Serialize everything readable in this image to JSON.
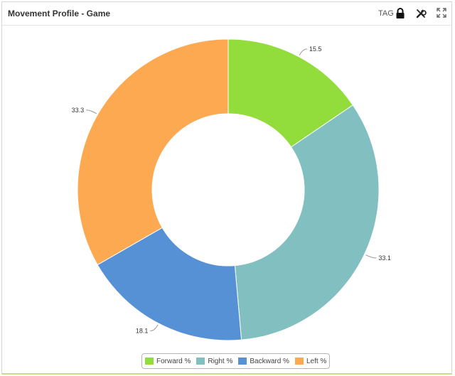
{
  "panel": {
    "title": "Movement Profile - Game",
    "tag_label": "TAG",
    "icons": [
      "lock-icon",
      "tools-icon",
      "expand-icon"
    ]
  },
  "chart_data": {
    "type": "pie",
    "donut": true,
    "series": [
      {
        "name": "Forward %",
        "value": 15.5,
        "color": "#92dc3c"
      },
      {
        "name": "Right %",
        "value": 33.1,
        "color": "#81bfc0"
      },
      {
        "name": "Backward %",
        "value": 18.1,
        "color": "#5591d4"
      },
      {
        "name": "Left %",
        "value": 33.3,
        "color": "#fca951"
      }
    ],
    "legend_position": "bottom",
    "title": ""
  }
}
